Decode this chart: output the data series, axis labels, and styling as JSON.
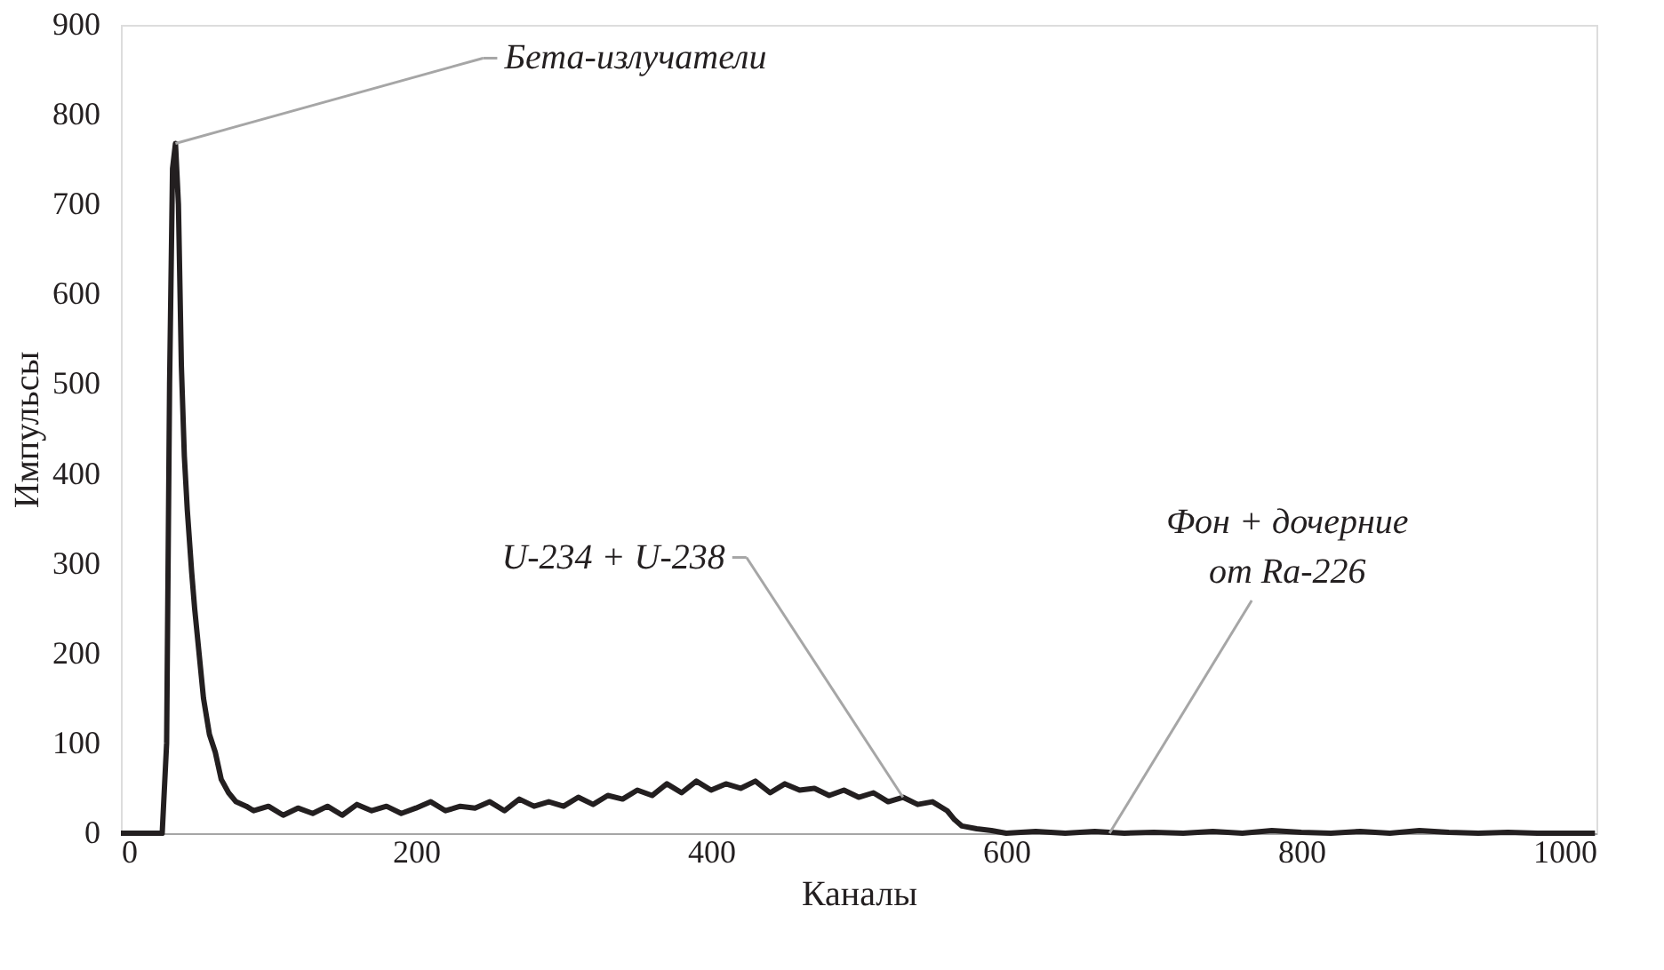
{
  "chart_data": {
    "type": "line",
    "xlabel": "Каналы",
    "ylabel": "Импульсы",
    "xlim": [
      0,
      1000
    ],
    "xticks": [
      0,
      200,
      400,
      600,
      800,
      1000
    ],
    "ylim": [
      0,
      900
    ],
    "yticks": [
      0,
      100,
      200,
      300,
      400,
      500,
      600,
      700,
      800,
      900
    ],
    "grid": false,
    "marker": "none",
    "line_style": "solid",
    "series": [
      {
        "color": "#231f20",
        "x": [
          0,
          10,
          20,
          28,
          31,
          33,
          35,
          37,
          39,
          41,
          43,
          45,
          48,
          50,
          53,
          56,
          60,
          64,
          68,
          73,
          78,
          85,
          90,
          100,
          110,
          120,
          130,
          140,
          150,
          160,
          170,
          180,
          190,
          200,
          210,
          220,
          230,
          240,
          250,
          260,
          270,
          280,
          290,
          300,
          310,
          320,
          330,
          340,
          350,
          360,
          370,
          380,
          390,
          400,
          410,
          420,
          430,
          440,
          450,
          460,
          470,
          480,
          490,
          500,
          510,
          520,
          530,
          540,
          550,
          560,
          565,
          570,
          580,
          590,
          600,
          620,
          640,
          660,
          680,
          700,
          720,
          740,
          760,
          780,
          800,
          820,
          840,
          860,
          880,
          900,
          920,
          940,
          960,
          980,
          999
        ],
        "values": [
          0,
          0,
          0,
          0,
          100,
          500,
          740,
          768,
          700,
          520,
          420,
          360,
          290,
          250,
          200,
          150,
          110,
          90,
          60,
          45,
          35,
          30,
          25,
          30,
          20,
          28,
          22,
          30,
          20,
          32,
          25,
          30,
          22,
          28,
          35,
          25,
          30,
          28,
          35,
          25,
          38,
          30,
          35,
          30,
          40,
          32,
          42,
          38,
          48,
          42,
          55,
          45,
          58,
          48,
          55,
          50,
          58,
          45,
          55,
          48,
          50,
          42,
          48,
          40,
          45,
          35,
          40,
          32,
          35,
          25,
          15,
          8,
          5,
          3,
          0,
          2,
          0,
          2,
          0,
          1,
          0,
          2,
          0,
          3,
          1,
          0,
          2,
          0,
          3,
          1,
          0,
          1,
          0,
          0,
          0
        ]
      }
    ],
    "annotations": [
      {
        "text": "Бета-излучатели",
        "x": 37,
        "y": 768
      },
      {
        "text": "U-234 + U-238",
        "x": 530,
        "y": 40
      },
      {
        "text": "Фон + дочерние\nот Ra-226",
        "x": 670,
        "y": 0
      }
    ]
  }
}
